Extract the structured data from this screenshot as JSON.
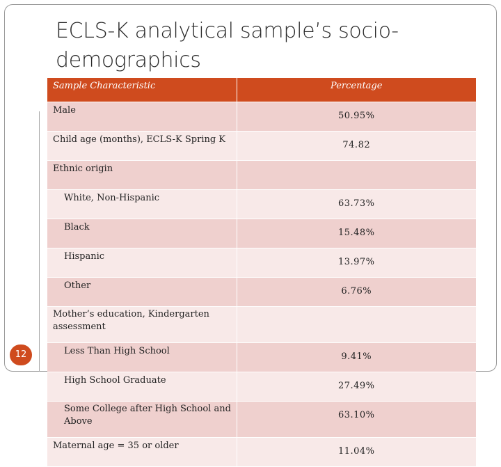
{
  "slide": {
    "title": "ECLS-K analytical sample’s socio-demographics",
    "page_number": "12",
    "accent_color": "#cf4b1e"
  },
  "table": {
    "headers": [
      "Sample Characteristic",
      "Percentage"
    ],
    "rows": [
      {
        "label": "Male",
        "value": "50.95%"
      },
      {
        "label": "Child age (months), ECLS-K Spring K",
        "value": "74.82"
      },
      {
        "label": "Ethnic origin",
        "value": ""
      },
      {
        "label": "White, Non-Hispanic",
        "value": "63.73%"
      },
      {
        "label": "Black",
        "value": "15.48%"
      },
      {
        "label": "Hispanic",
        "value": "13.97%"
      },
      {
        "label": "Other",
        "value": "6.76%"
      },
      {
        "label": "Mother’s education, Kindergarten assessment",
        "value": ""
      },
      {
        "label": "Less Than High School",
        "value": "9.41%"
      },
      {
        "label": "High School Graduate",
        "value": "27.49%"
      },
      {
        "label": "Some College after High School and Above",
        "value": "63.10%"
      },
      {
        "label": "Maternal age = 35 or older",
        "value": "11.04%"
      }
    ]
  }
}
